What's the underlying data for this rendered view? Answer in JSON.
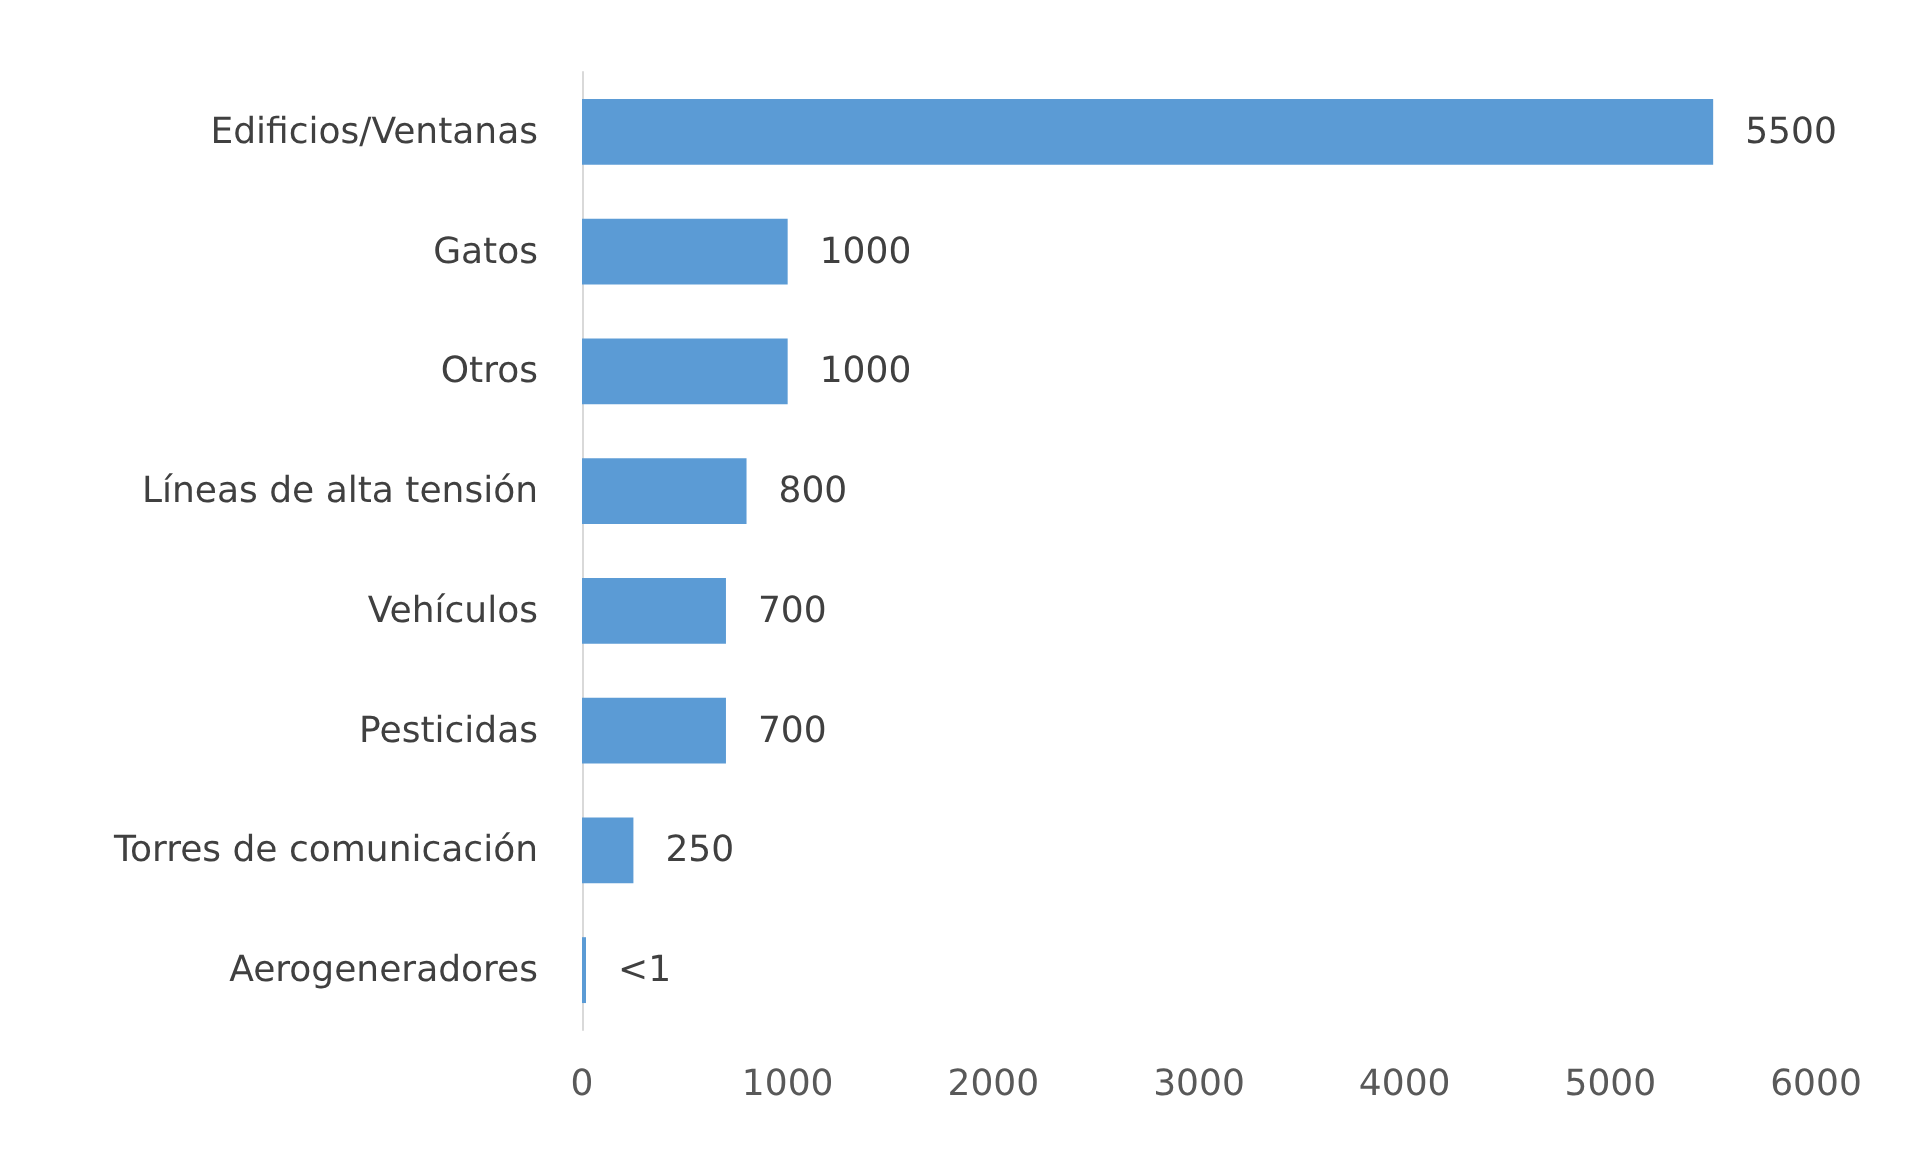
{
  "chart_data": {
    "type": "bar",
    "orientation": "horizontal",
    "categories": [
      "Edificios/Ventanas",
      "Gatos",
      "Otros",
      "Líneas de alta tensión",
      "Vehículos",
      "Pesticidas",
      "Torres de comunicación",
      "Aerogeneradores"
    ],
    "values": [
      5500,
      1000,
      1000,
      800,
      700,
      700,
      250,
      0.5
    ],
    "value_labels": [
      "5500",
      "1000",
      "1000",
      "800",
      "700",
      "700",
      "250",
      "<1"
    ],
    "color": "#5b9bd5",
    "xlim": [
      0,
      6000
    ],
    "xticks": [
      0,
      1000,
      2000,
      3000,
      4000,
      5000,
      6000
    ],
    "grid": false
  }
}
